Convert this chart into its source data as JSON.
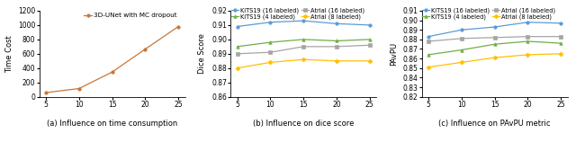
{
  "x": [
    5,
    10,
    15,
    20,
    25
  ],
  "plot_a": {
    "ylabel": "Time Cost",
    "caption": "(a) Influence on time consumption",
    "series": [
      {
        "label": "3D-UNet with MC dropout",
        "color": "#c8763a",
        "marker": "o",
        "values": [
          58,
          115,
          345,
          665,
          980
        ]
      }
    ],
    "ylim": [
      0,
      1200
    ],
    "yticks": [
      0,
      200,
      400,
      600,
      800,
      1000,
      1200
    ]
  },
  "plot_b": {
    "ylabel": "Dice Score",
    "caption": "(b) Influence on dice score",
    "series": [
      {
        "label": "KiTS19 (16 labeled)",
        "color": "#5b9bd5",
        "marker": "o",
        "values": [
          0.909,
          0.912,
          0.913,
          0.911,
          0.91
        ]
      },
      {
        "label": "KiTS19 (4 labeled)",
        "color": "#70ad47",
        "marker": "^",
        "values": [
          0.895,
          0.898,
          0.9,
          0.899,
          0.9
        ]
      },
      {
        "label": "Atrial (16 labeled)",
        "color": "#a5a5a5",
        "marker": "s",
        "values": [
          0.89,
          0.891,
          0.895,
          0.895,
          0.896
        ]
      },
      {
        "label": "Atrial (8 labeled)",
        "color": "#ffc000",
        "marker": "D",
        "values": [
          0.88,
          0.884,
          0.886,
          0.885,
          0.885
        ]
      }
    ],
    "ylim": [
      0.86,
      0.92
    ],
    "yticks": [
      0.86,
      0.87,
      0.88,
      0.89,
      0.9,
      0.91,
      0.92
    ]
  },
  "plot_c": {
    "ylabel": "PAvPU",
    "caption": "(c) Influence on PAvPU metric",
    "series": [
      {
        "label": "KiTS19 (16 labeled)",
        "color": "#5b9bd5",
        "marker": "o",
        "values": [
          0.883,
          0.89,
          0.893,
          0.898,
          0.897
        ]
      },
      {
        "label": "KiTS19 (4 labeled)",
        "color": "#70ad47",
        "marker": "^",
        "values": [
          0.864,
          0.869,
          0.875,
          0.878,
          0.876
        ]
      },
      {
        "label": "Atrial (16 labeled)",
        "color": "#a5a5a5",
        "marker": "s",
        "values": [
          0.878,
          0.881,
          0.882,
          0.883,
          0.883
        ]
      },
      {
        "label": "Atrial (8 labeled)",
        "color": "#ffc000",
        "marker": "D",
        "values": [
          0.851,
          0.856,
          0.861,
          0.864,
          0.865
        ]
      }
    ],
    "ylim": [
      0.82,
      0.91
    ],
    "yticks": [
      0.82,
      0.83,
      0.84,
      0.85,
      0.86,
      0.87,
      0.88,
      0.89,
      0.9,
      0.91
    ]
  }
}
